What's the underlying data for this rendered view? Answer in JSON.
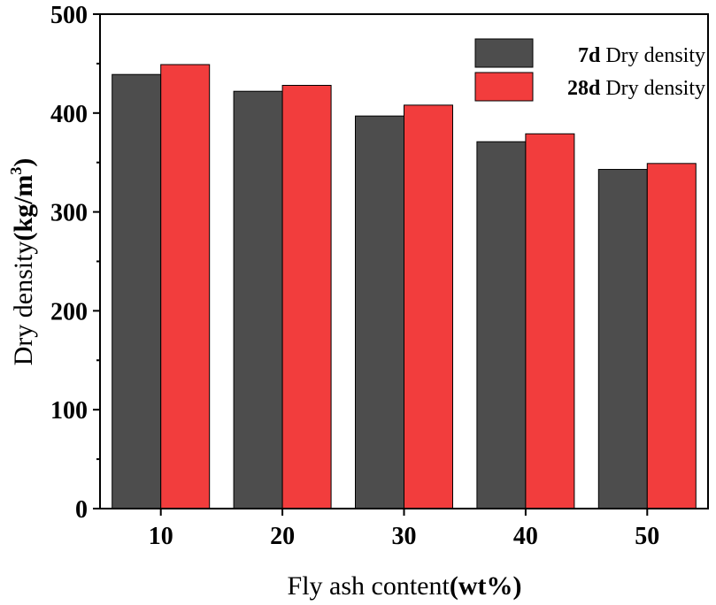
{
  "chart_data": {
    "type": "bar",
    "title": "",
    "categories": [
      "10",
      "20",
      "30",
      "40",
      "50"
    ],
    "series": [
      {
        "name": "7d Dry density",
        "name_bold": "7d",
        "name_rest": " Dry density",
        "color": "#4d4d4d",
        "values": [
          439,
          422,
          397,
          371,
          343
        ]
      },
      {
        "name": "28d Dry density",
        "name_bold": "28d",
        "name_rest": " Dry density",
        "color": "#f23d3d",
        "values": [
          449,
          428,
          408,
          379,
          349
        ]
      }
    ],
    "xlabel": "Fly ash content(wt%)",
    "xlabel_main": "Fly ash content",
    "xlabel_unit": "(wt%)",
    "ylabel": "Dry density(kg/m3)",
    "ylabel_main": "Dry density",
    "ylabel_unit": "(kg/m",
    "ylabel_sup": "3",
    "ylabel_close": ")",
    "ylim": [
      0,
      500
    ],
    "yticks": [
      0,
      100,
      200,
      300,
      400,
      500
    ],
    "legend_position": "top-right",
    "grid": false
  }
}
